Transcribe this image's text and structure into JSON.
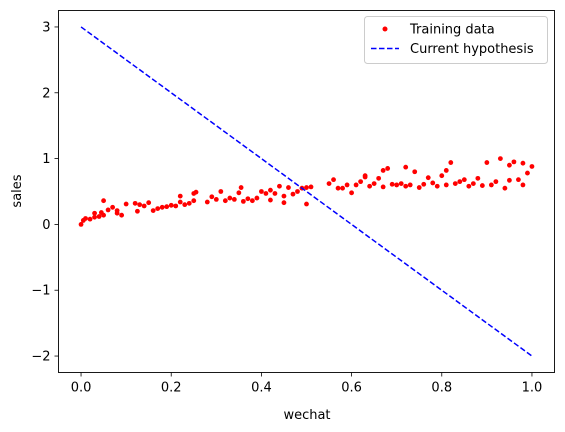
{
  "chart_data": {
    "type": "scatter",
    "title": "",
    "xlabel": "wechat",
    "ylabel": "sales",
    "xlim": [
      -0.05,
      1.05
    ],
    "ylim": [
      -2.25,
      3.25
    ],
    "xticks": [
      0.0,
      0.2,
      0.4,
      0.6,
      0.8,
      1.0
    ],
    "xtick_labels": [
      "0.0",
      "0.2",
      "0.4",
      "0.6",
      "0.8",
      "1.0"
    ],
    "yticks": [
      -2,
      -1,
      0,
      1,
      2,
      3
    ],
    "ytick_labels": [
      "−2",
      "−1",
      "0",
      "1",
      "2",
      "3"
    ],
    "grid": false,
    "legend_position": "top-right",
    "series": [
      {
        "name": "Training data",
        "kind": "points",
        "color": "#ff0000",
        "points": [
          [
            0.0,
            0.0
          ],
          [
            0.005,
            0.06
          ],
          [
            0.01,
            0.09
          ],
          [
            0.02,
            0.08
          ],
          [
            0.03,
            0.17
          ],
          [
            0.03,
            0.11
          ],
          [
            0.04,
            0.12
          ],
          [
            0.045,
            0.18
          ],
          [
            0.05,
            0.36
          ],
          [
            0.05,
            0.14
          ],
          [
            0.06,
            0.22
          ],
          [
            0.07,
            0.26
          ],
          [
            0.08,
            0.17
          ],
          [
            0.08,
            0.21
          ],
          [
            0.09,
            0.14
          ],
          [
            0.1,
            0.31
          ],
          [
            0.12,
            0.32
          ],
          [
            0.125,
            0.2
          ],
          [
            0.13,
            0.3
          ],
          [
            0.14,
            0.28
          ],
          [
            0.15,
            0.33
          ],
          [
            0.16,
            0.21
          ],
          [
            0.17,
            0.24
          ],
          [
            0.18,
            0.26
          ],
          [
            0.19,
            0.27
          ],
          [
            0.2,
            0.29
          ],
          [
            0.21,
            0.28
          ],
          [
            0.22,
            0.43
          ],
          [
            0.22,
            0.34
          ],
          [
            0.23,
            0.3
          ],
          [
            0.24,
            0.32
          ],
          [
            0.25,
            0.36
          ],
          [
            0.25,
            0.47
          ],
          [
            0.255,
            0.49
          ],
          [
            0.28,
            0.34
          ],
          [
            0.29,
            0.42
          ],
          [
            0.3,
            0.38
          ],
          [
            0.31,
            0.5
          ],
          [
            0.32,
            0.36
          ],
          [
            0.33,
            0.4
          ],
          [
            0.34,
            0.38
          ],
          [
            0.35,
            0.48
          ],
          [
            0.355,
            0.56
          ],
          [
            0.36,
            0.35
          ],
          [
            0.37,
            0.39
          ],
          [
            0.38,
            0.36
          ],
          [
            0.39,
            0.4
          ],
          [
            0.4,
            0.5
          ],
          [
            0.41,
            0.47
          ],
          [
            0.42,
            0.37
          ],
          [
            0.42,
            0.52
          ],
          [
            0.43,
            0.47
          ],
          [
            0.44,
            0.58
          ],
          [
            0.45,
            0.33
          ],
          [
            0.45,
            0.43
          ],
          [
            0.46,
            0.56
          ],
          [
            0.47,
            0.46
          ],
          [
            0.48,
            0.5
          ],
          [
            0.49,
            0.55
          ],
          [
            0.5,
            0.31
          ],
          [
            0.5,
            0.56
          ],
          [
            0.51,
            0.57
          ],
          [
            0.55,
            0.62
          ],
          [
            0.56,
            0.68
          ],
          [
            0.57,
            0.55
          ],
          [
            0.58,
            0.55
          ],
          [
            0.59,
            0.6
          ],
          [
            0.6,
            0.48
          ],
          [
            0.61,
            0.6
          ],
          [
            0.62,
            0.65
          ],
          [
            0.63,
            0.72
          ],
          [
            0.63,
            0.74
          ],
          [
            0.64,
            0.58
          ],
          [
            0.65,
            0.62
          ],
          [
            0.66,
            0.7
          ],
          [
            0.67,
            0.82
          ],
          [
            0.67,
            0.57
          ],
          [
            0.68,
            0.85
          ],
          [
            0.69,
            0.61
          ],
          [
            0.7,
            0.6
          ],
          [
            0.71,
            0.62
          ],
          [
            0.72,
            0.87
          ],
          [
            0.72,
            0.58
          ],
          [
            0.73,
            0.6
          ],
          [
            0.74,
            0.8
          ],
          [
            0.75,
            0.56
          ],
          [
            0.76,
            0.61
          ],
          [
            0.77,
            0.71
          ],
          [
            0.78,
            0.63
          ],
          [
            0.79,
            0.58
          ],
          [
            0.8,
            0.74
          ],
          [
            0.81,
            0.82
          ],
          [
            0.81,
            0.6
          ],
          [
            0.82,
            0.94
          ],
          [
            0.83,
            0.62
          ],
          [
            0.84,
            0.65
          ],
          [
            0.85,
            0.68
          ],
          [
            0.86,
            0.58
          ],
          [
            0.87,
            0.62
          ],
          [
            0.88,
            0.7
          ],
          [
            0.89,
            0.59
          ],
          [
            0.9,
            0.94
          ],
          [
            0.91,
            0.6
          ],
          [
            0.92,
            0.65
          ],
          [
            0.93,
            1.0
          ],
          [
            0.94,
            0.55
          ],
          [
            0.95,
            0.9
          ],
          [
            0.95,
            0.67
          ],
          [
            0.96,
            0.95
          ],
          [
            0.97,
            0.68
          ],
          [
            0.98,
            0.93
          ],
          [
            0.98,
            0.6
          ],
          [
            0.99,
            0.78
          ],
          [
            1.0,
            0.88
          ]
        ]
      },
      {
        "name": "Current hypothesis",
        "kind": "dashed-line",
        "color": "#0000ff",
        "x": [
          0.0,
          1.0
        ],
        "y": [
          3.0,
          -2.0
        ]
      }
    ]
  }
}
